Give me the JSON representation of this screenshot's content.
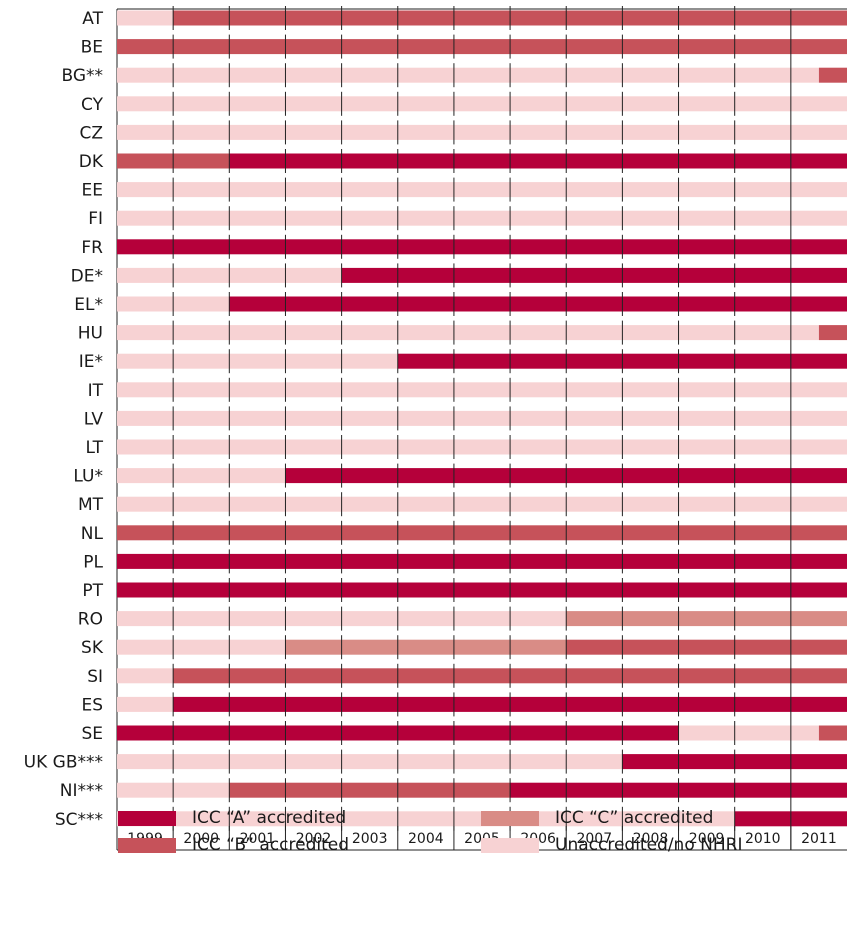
{
  "chart_data": {
    "type": "bar",
    "orientation": "horizontal-timeline",
    "title": "",
    "xlabel": "",
    "ylabel": "",
    "x": [
      "1999",
      "2000",
      "2001",
      "2002",
      "2003",
      "2004",
      "2005",
      "2006",
      "2007",
      "2008",
      "2009",
      "2010",
      "2011"
    ],
    "xlim": [
      1999,
      2012
    ],
    "grid": true,
    "legend_position": "bottom",
    "statuses": [
      {
        "key": "A",
        "label": "ICC “A” accredited",
        "color": "#b5003a"
      },
      {
        "key": "B",
        "label": "ICC “B” accredited",
        "color": "#c6525a"
      },
      {
        "key": "C",
        "label": "ICC “C” accredited",
        "color": "#d98c86"
      },
      {
        "key": "U",
        "label": "Unaccredited/no NHRI",
        "color": "#f7d2d3"
      }
    ],
    "rows": [
      {
        "label": "AT",
        "segments": [
          {
            "start": 1999,
            "end": 2000,
            "status": "U"
          },
          {
            "start": 2000,
            "end": 2012,
            "status": "B"
          }
        ]
      },
      {
        "label": "BE",
        "segments": [
          {
            "start": 1999,
            "end": 2012,
            "status": "B"
          }
        ]
      },
      {
        "label": "BG**",
        "segments": [
          {
            "start": 1999,
            "end": 2011.5,
            "status": "U"
          },
          {
            "start": 2011.5,
            "end": 2012,
            "status": "B"
          }
        ]
      },
      {
        "label": "CY",
        "segments": [
          {
            "start": 1999,
            "end": 2012,
            "status": "U"
          }
        ]
      },
      {
        "label": "CZ",
        "segments": [
          {
            "start": 1999,
            "end": 2012,
            "status": "U"
          }
        ]
      },
      {
        "label": "DK",
        "segments": [
          {
            "start": 1999,
            "end": 2001,
            "status": "B"
          },
          {
            "start": 2001,
            "end": 2012,
            "status": "A"
          }
        ]
      },
      {
        "label": "EE",
        "segments": [
          {
            "start": 1999,
            "end": 2012,
            "status": "U"
          }
        ]
      },
      {
        "label": "FI",
        "segments": [
          {
            "start": 1999,
            "end": 2012,
            "status": "U"
          }
        ]
      },
      {
        "label": "FR",
        "segments": [
          {
            "start": 1999,
            "end": 2012,
            "status": "A"
          }
        ]
      },
      {
        "label": "DE*",
        "segments": [
          {
            "start": 1999,
            "end": 2003,
            "status": "U"
          },
          {
            "start": 2003,
            "end": 2012,
            "status": "A"
          }
        ]
      },
      {
        "label": "EL*",
        "segments": [
          {
            "start": 1999,
            "end": 2001,
            "status": "U"
          },
          {
            "start": 2001,
            "end": 2012,
            "status": "A"
          }
        ]
      },
      {
        "label": "HU",
        "segments": [
          {
            "start": 1999,
            "end": 2011.5,
            "status": "U"
          },
          {
            "start": 2011.5,
            "end": 2012,
            "status": "B"
          }
        ]
      },
      {
        "label": "IE*",
        "segments": [
          {
            "start": 1999,
            "end": 2004,
            "status": "U"
          },
          {
            "start": 2004,
            "end": 2012,
            "status": "A"
          }
        ]
      },
      {
        "label": "IT",
        "segments": [
          {
            "start": 1999,
            "end": 2012,
            "status": "U"
          }
        ]
      },
      {
        "label": "LV",
        "segments": [
          {
            "start": 1999,
            "end": 2012,
            "status": "U"
          }
        ]
      },
      {
        "label": "LT",
        "segments": [
          {
            "start": 1999,
            "end": 2012,
            "status": "U"
          }
        ]
      },
      {
        "label": "LU*",
        "segments": [
          {
            "start": 1999,
            "end": 2002,
            "status": "U"
          },
          {
            "start": 2002,
            "end": 2012,
            "status": "A"
          }
        ]
      },
      {
        "label": "MT",
        "segments": [
          {
            "start": 1999,
            "end": 2012,
            "status": "U"
          }
        ]
      },
      {
        "label": "NL",
        "segments": [
          {
            "start": 1999,
            "end": 2012,
            "status": "B"
          }
        ]
      },
      {
        "label": "PL",
        "segments": [
          {
            "start": 1999,
            "end": 2012,
            "status": "A"
          }
        ]
      },
      {
        "label": "PT",
        "segments": [
          {
            "start": 1999,
            "end": 2012,
            "status": "A"
          }
        ]
      },
      {
        "label": "RO",
        "segments": [
          {
            "start": 1999,
            "end": 2007,
            "status": "U"
          },
          {
            "start": 2007,
            "end": 2012,
            "status": "C"
          }
        ]
      },
      {
        "label": "SK",
        "segments": [
          {
            "start": 1999,
            "end": 2002,
            "status": "U"
          },
          {
            "start": 2002,
            "end": 2007,
            "status": "C"
          },
          {
            "start": 2007,
            "end": 2012,
            "status": "B"
          }
        ]
      },
      {
        "label": "SI",
        "segments": [
          {
            "start": 1999,
            "end": 2000,
            "status": "U"
          },
          {
            "start": 2000,
            "end": 2012,
            "status": "B"
          }
        ]
      },
      {
        "label": "ES",
        "segments": [
          {
            "start": 1999,
            "end": 2000,
            "status": "U"
          },
          {
            "start": 2000,
            "end": 2012,
            "status": "A"
          }
        ]
      },
      {
        "label": "SE",
        "segments": [
          {
            "start": 1999,
            "end": 2009,
            "status": "A"
          },
          {
            "start": 2009,
            "end": 2011.5,
            "status": "U"
          },
          {
            "start": 2011.5,
            "end": 2012,
            "status": "B"
          }
        ]
      },
      {
        "label": "UK GB***",
        "segments": [
          {
            "start": 1999,
            "end": 2008,
            "status": "U"
          },
          {
            "start": 2008,
            "end": 2012,
            "status": "A"
          }
        ]
      },
      {
        "label": "NI***",
        "segments": [
          {
            "start": 1999,
            "end": 2001,
            "status": "U"
          },
          {
            "start": 2001,
            "end": 2006,
            "status": "B"
          },
          {
            "start": 2006,
            "end": 2012,
            "status": "A"
          }
        ]
      },
      {
        "label": "SC***",
        "segments": [
          {
            "start": 1999,
            "end": 2010,
            "status": "U"
          },
          {
            "start": 2010,
            "end": 2012,
            "status": "A"
          }
        ]
      }
    ]
  }
}
